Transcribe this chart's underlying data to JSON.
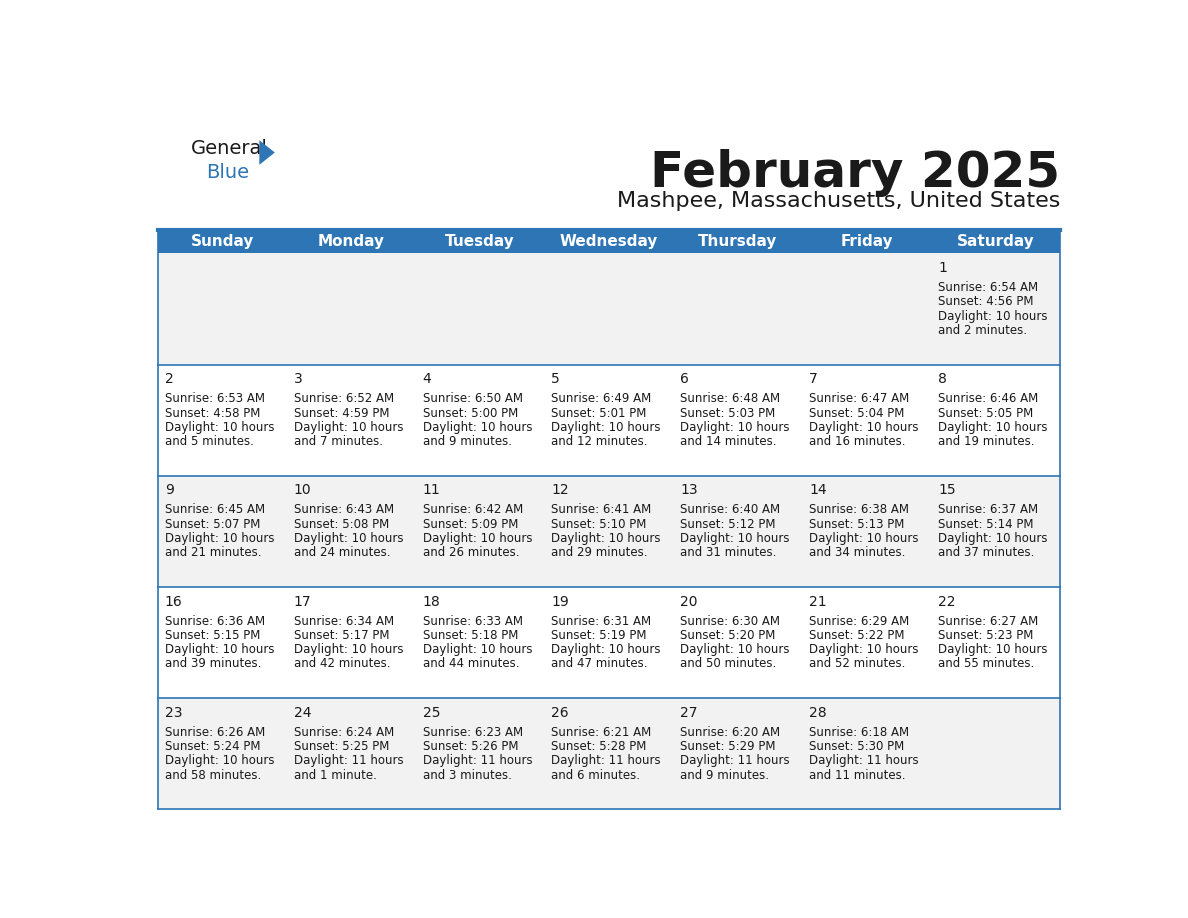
{
  "title": "February 2025",
  "subtitle": "Mashpee, Massachusetts, United States",
  "header_color": "#2E75B6",
  "header_text_color": "#FFFFFF",
  "title_color": "#1a1a1a",
  "subtitle_color": "#1a1a1a",
  "background_color": "#FFFFFF",
  "cell_alt_color": "#F2F2F2",
  "cell_white_color": "#FFFFFF",
  "cell_line_color": "#2E75B6",
  "text_color": "#1a1a1a",
  "days_of_week": [
    "Sunday",
    "Monday",
    "Tuesday",
    "Wednesday",
    "Thursday",
    "Friday",
    "Saturday"
  ],
  "weeks": [
    [
      {
        "day": null,
        "sunrise": null,
        "sunset": null,
        "daylight_line1": null,
        "daylight_line2": null
      },
      {
        "day": null,
        "sunrise": null,
        "sunset": null,
        "daylight_line1": null,
        "daylight_line2": null
      },
      {
        "day": null,
        "sunrise": null,
        "sunset": null,
        "daylight_line1": null,
        "daylight_line2": null
      },
      {
        "day": null,
        "sunrise": null,
        "sunset": null,
        "daylight_line1": null,
        "daylight_line2": null
      },
      {
        "day": null,
        "sunrise": null,
        "sunset": null,
        "daylight_line1": null,
        "daylight_line2": null
      },
      {
        "day": null,
        "sunrise": null,
        "sunset": null,
        "daylight_line1": null,
        "daylight_line2": null
      },
      {
        "day": 1,
        "sunrise": "6:54 AM",
        "sunset": "4:56 PM",
        "daylight_line1": "Daylight: 10 hours",
        "daylight_line2": "and 2 minutes."
      }
    ],
    [
      {
        "day": 2,
        "sunrise": "6:53 AM",
        "sunset": "4:58 PM",
        "daylight_line1": "Daylight: 10 hours",
        "daylight_line2": "and 5 minutes."
      },
      {
        "day": 3,
        "sunrise": "6:52 AM",
        "sunset": "4:59 PM",
        "daylight_line1": "Daylight: 10 hours",
        "daylight_line2": "and 7 minutes."
      },
      {
        "day": 4,
        "sunrise": "6:50 AM",
        "sunset": "5:00 PM",
        "daylight_line1": "Daylight: 10 hours",
        "daylight_line2": "and 9 minutes."
      },
      {
        "day": 5,
        "sunrise": "6:49 AM",
        "sunset": "5:01 PM",
        "daylight_line1": "Daylight: 10 hours",
        "daylight_line2": "and 12 minutes."
      },
      {
        "day": 6,
        "sunrise": "6:48 AM",
        "sunset": "5:03 PM",
        "daylight_line1": "Daylight: 10 hours",
        "daylight_line2": "and 14 minutes."
      },
      {
        "day": 7,
        "sunrise": "6:47 AM",
        "sunset": "5:04 PM",
        "daylight_line1": "Daylight: 10 hours",
        "daylight_line2": "and 16 minutes."
      },
      {
        "day": 8,
        "sunrise": "6:46 AM",
        "sunset": "5:05 PM",
        "daylight_line1": "Daylight: 10 hours",
        "daylight_line2": "and 19 minutes."
      }
    ],
    [
      {
        "day": 9,
        "sunrise": "6:45 AM",
        "sunset": "5:07 PM",
        "daylight_line1": "Daylight: 10 hours",
        "daylight_line2": "and 21 minutes."
      },
      {
        "day": 10,
        "sunrise": "6:43 AM",
        "sunset": "5:08 PM",
        "daylight_line1": "Daylight: 10 hours",
        "daylight_line2": "and 24 minutes."
      },
      {
        "day": 11,
        "sunrise": "6:42 AM",
        "sunset": "5:09 PM",
        "daylight_line1": "Daylight: 10 hours",
        "daylight_line2": "and 26 minutes."
      },
      {
        "day": 12,
        "sunrise": "6:41 AM",
        "sunset": "5:10 PM",
        "daylight_line1": "Daylight: 10 hours",
        "daylight_line2": "and 29 minutes."
      },
      {
        "day": 13,
        "sunrise": "6:40 AM",
        "sunset": "5:12 PM",
        "daylight_line1": "Daylight: 10 hours",
        "daylight_line2": "and 31 minutes."
      },
      {
        "day": 14,
        "sunrise": "6:38 AM",
        "sunset": "5:13 PM",
        "daylight_line1": "Daylight: 10 hours",
        "daylight_line2": "and 34 minutes."
      },
      {
        "day": 15,
        "sunrise": "6:37 AM",
        "sunset": "5:14 PM",
        "daylight_line1": "Daylight: 10 hours",
        "daylight_line2": "and 37 minutes."
      }
    ],
    [
      {
        "day": 16,
        "sunrise": "6:36 AM",
        "sunset": "5:15 PM",
        "daylight_line1": "Daylight: 10 hours",
        "daylight_line2": "and 39 minutes."
      },
      {
        "day": 17,
        "sunrise": "6:34 AM",
        "sunset": "5:17 PM",
        "daylight_line1": "Daylight: 10 hours",
        "daylight_line2": "and 42 minutes."
      },
      {
        "day": 18,
        "sunrise": "6:33 AM",
        "sunset": "5:18 PM",
        "daylight_line1": "Daylight: 10 hours",
        "daylight_line2": "and 44 minutes."
      },
      {
        "day": 19,
        "sunrise": "6:31 AM",
        "sunset": "5:19 PM",
        "daylight_line1": "Daylight: 10 hours",
        "daylight_line2": "and 47 minutes."
      },
      {
        "day": 20,
        "sunrise": "6:30 AM",
        "sunset": "5:20 PM",
        "daylight_line1": "Daylight: 10 hours",
        "daylight_line2": "and 50 minutes."
      },
      {
        "day": 21,
        "sunrise": "6:29 AM",
        "sunset": "5:22 PM",
        "daylight_line1": "Daylight: 10 hours",
        "daylight_line2": "and 52 minutes."
      },
      {
        "day": 22,
        "sunrise": "6:27 AM",
        "sunset": "5:23 PM",
        "daylight_line1": "Daylight: 10 hours",
        "daylight_line2": "and 55 minutes."
      }
    ],
    [
      {
        "day": 23,
        "sunrise": "6:26 AM",
        "sunset": "5:24 PM",
        "daylight_line1": "Daylight: 10 hours",
        "daylight_line2": "and 58 minutes."
      },
      {
        "day": 24,
        "sunrise": "6:24 AM",
        "sunset": "5:25 PM",
        "daylight_line1": "Daylight: 11 hours",
        "daylight_line2": "and 1 minute."
      },
      {
        "day": 25,
        "sunrise": "6:23 AM",
        "sunset": "5:26 PM",
        "daylight_line1": "Daylight: 11 hours",
        "daylight_line2": "and 3 minutes."
      },
      {
        "day": 26,
        "sunrise": "6:21 AM",
        "sunset": "5:28 PM",
        "daylight_line1": "Daylight: 11 hours",
        "daylight_line2": "and 6 minutes."
      },
      {
        "day": 27,
        "sunrise": "6:20 AM",
        "sunset": "5:29 PM",
        "daylight_line1": "Daylight: 11 hours",
        "daylight_line2": "and 9 minutes."
      },
      {
        "day": 28,
        "sunrise": "6:18 AM",
        "sunset": "5:30 PM",
        "daylight_line1": "Daylight: 11 hours",
        "daylight_line2": "and 11 minutes."
      },
      {
        "day": null,
        "sunrise": null,
        "sunset": null,
        "daylight_line1": null,
        "daylight_line2": null
      }
    ]
  ],
  "logo_general_color": "#1a1a1a",
  "logo_blue_color": "#2E75B6",
  "logo_triangle_color": "#2E75B6"
}
